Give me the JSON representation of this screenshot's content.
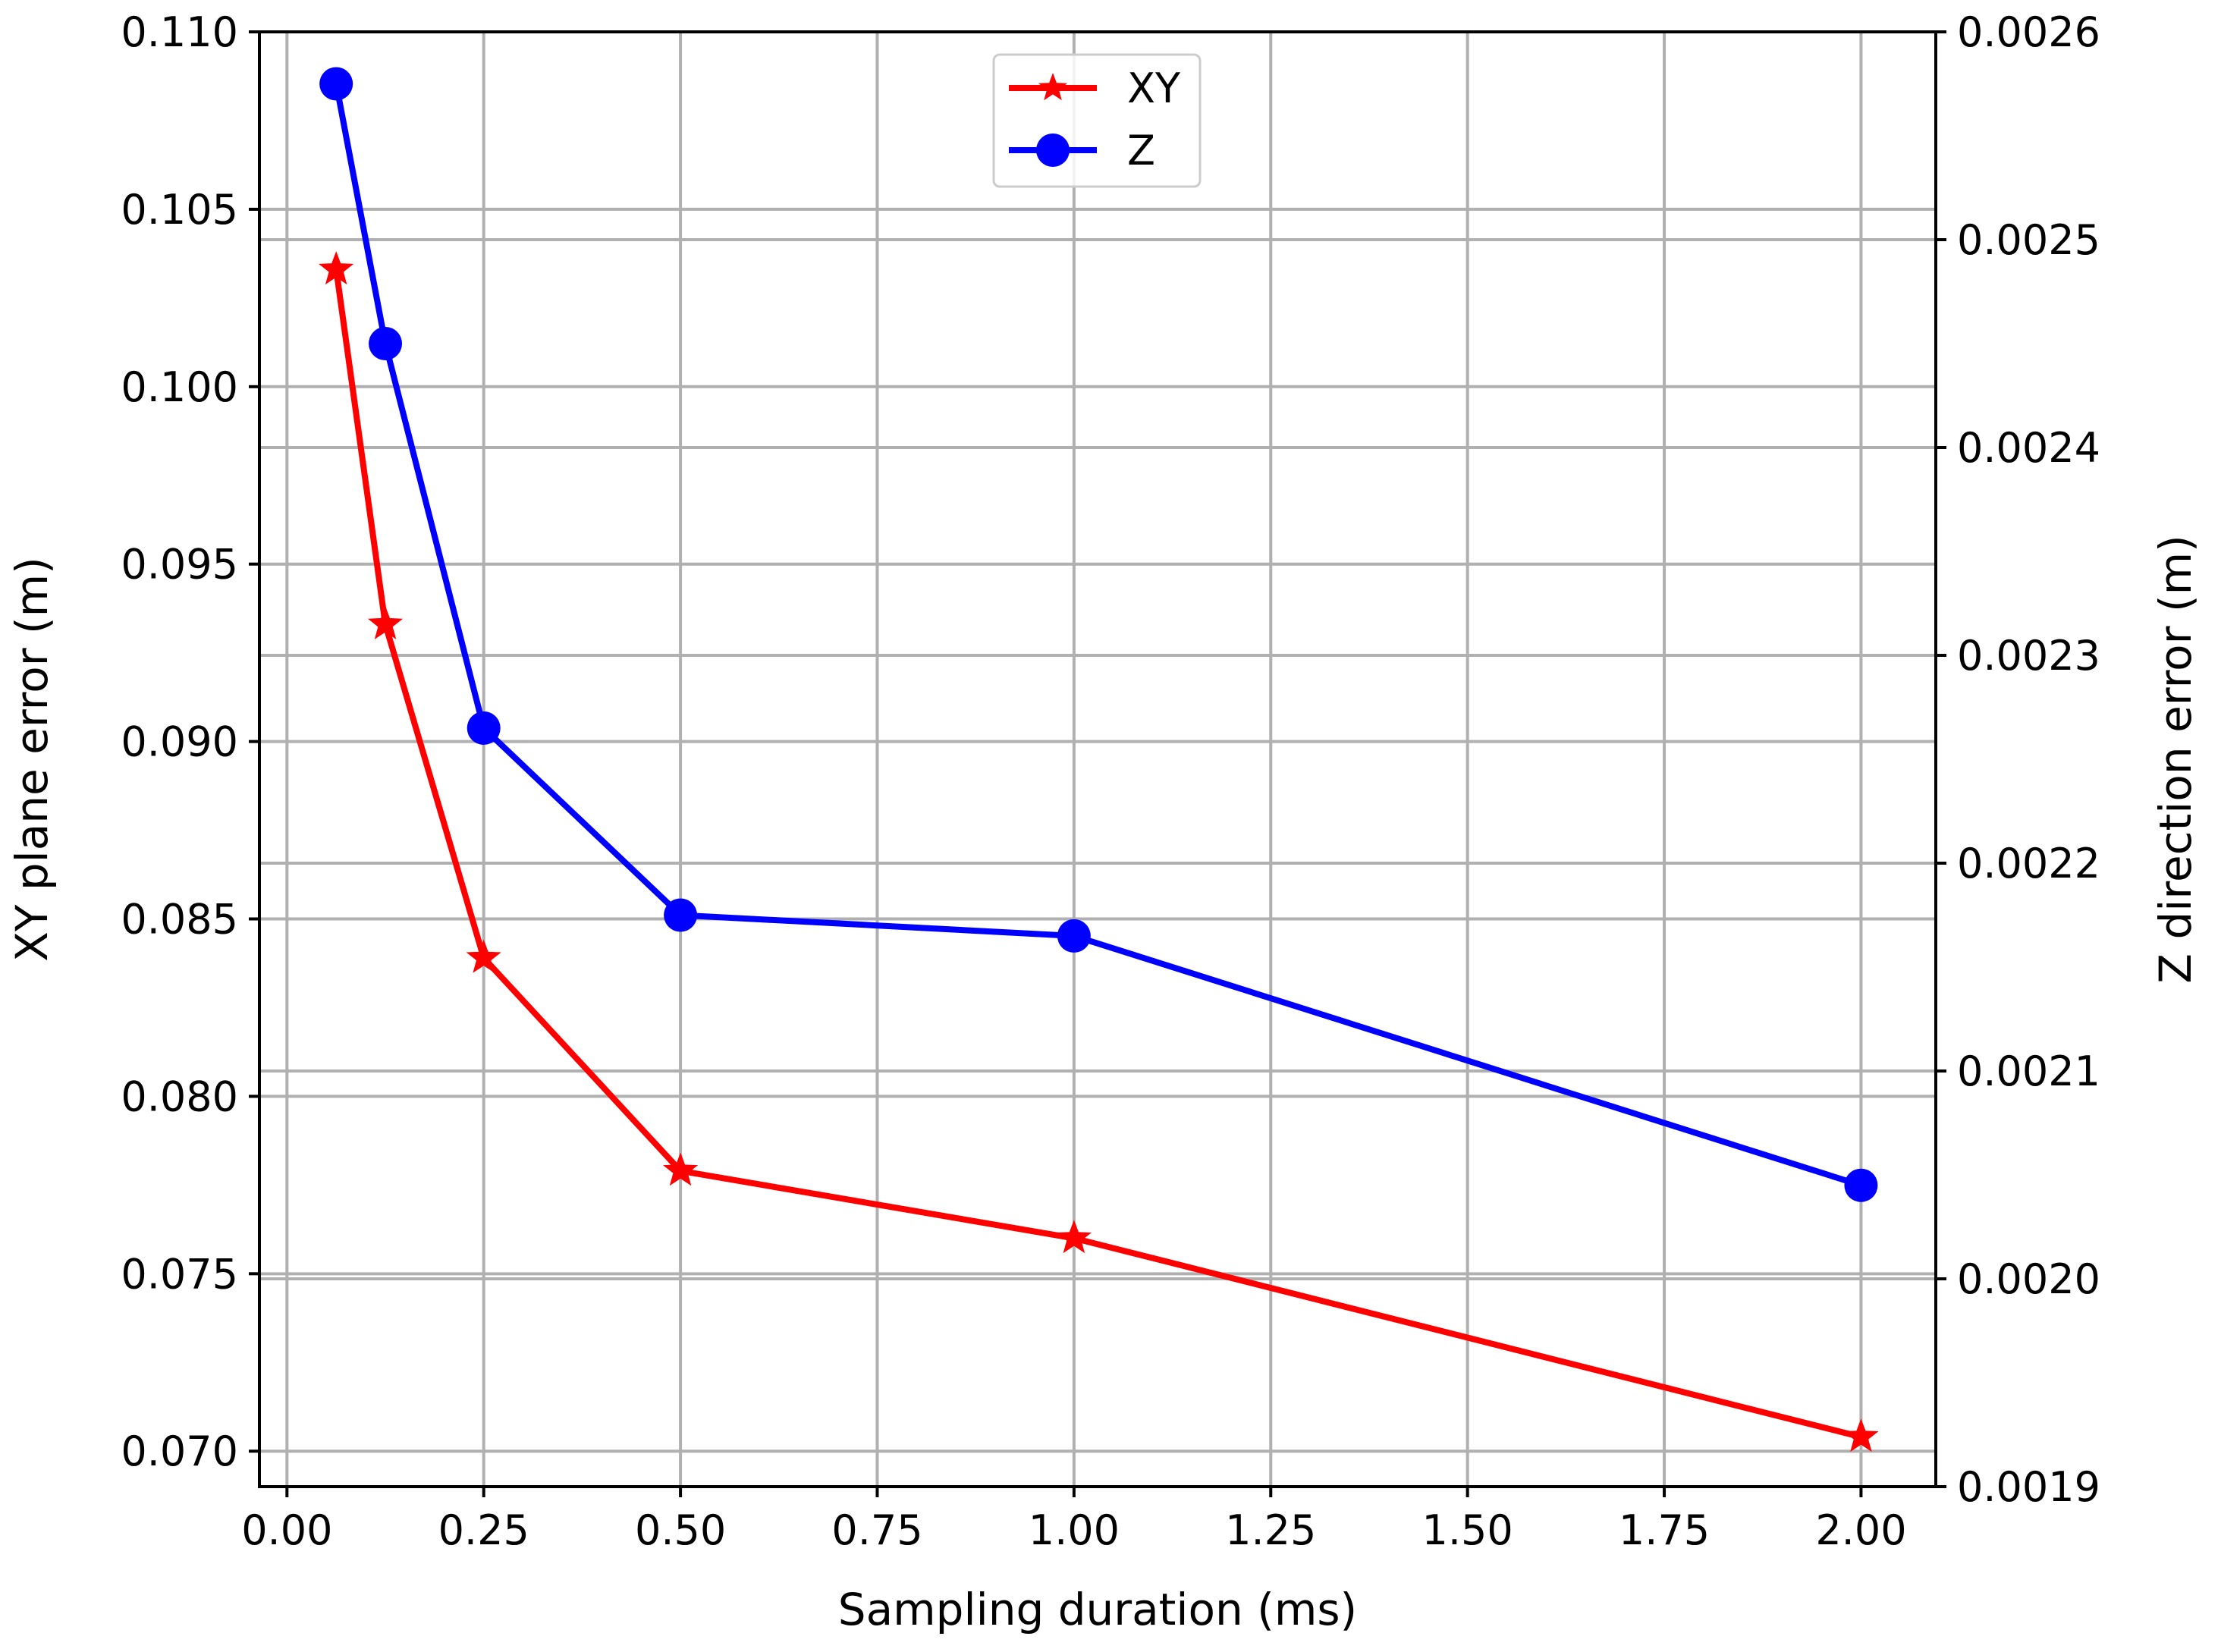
{
  "chart_data": {
    "type": "line",
    "x": [
      0.0625,
      0.125,
      0.25,
      0.5,
      1.0,
      2.0
    ],
    "xlabel": "Sampling duration (ms)",
    "xlim": [
      -0.035,
      2.095
    ],
    "xticks": [
      0.0,
      0.25,
      0.5,
      0.75,
      1.0,
      1.25,
      1.5,
      1.75,
      2.0
    ],
    "xtick_labels": [
      "0.00",
      "0.25",
      "0.50",
      "0.75",
      "1.00",
      "1.25",
      "1.50",
      "1.75",
      "2.00"
    ],
    "y_left": {
      "label": "XY plane error (m)",
      "lim": [
        0.069,
        0.11
      ],
      "ticks": [
        0.07,
        0.075,
        0.08,
        0.085,
        0.09,
        0.095,
        0.1,
        0.105,
        0.11
      ],
      "tick_labels": [
        "0.070",
        "0.075",
        "0.080",
        "0.085",
        "0.090",
        "0.095",
        "0.100",
        "0.105",
        "0.110"
      ]
    },
    "y_right": {
      "label": "Z direction error (m)",
      "lim": [
        0.0019,
        0.0026
      ],
      "ticks": [
        0.0019,
        0.002,
        0.0021,
        0.0022,
        0.0023,
        0.0024,
        0.0025,
        0.0026
      ],
      "tick_labels": [
        "0.0019",
        "0.0020",
        "0.0021",
        "0.0022",
        "0.0023",
        "0.0024",
        "0.0025",
        "0.0026"
      ]
    },
    "series": [
      {
        "name": "XY",
        "axis": "left",
        "color": "#ff0000",
        "marker": "star",
        "values": [
          0.1033,
          0.0933,
          0.0839,
          0.0779,
          0.076,
          0.0704
        ]
      },
      {
        "name": "Z",
        "axis": "right",
        "color": "#0000ff",
        "marker": "circle",
        "values": [
          0.002575,
          0.00245,
          0.002265,
          0.002175,
          0.002165,
          0.002045
        ]
      }
    ],
    "grid": true,
    "legend_position": "top-center"
  }
}
